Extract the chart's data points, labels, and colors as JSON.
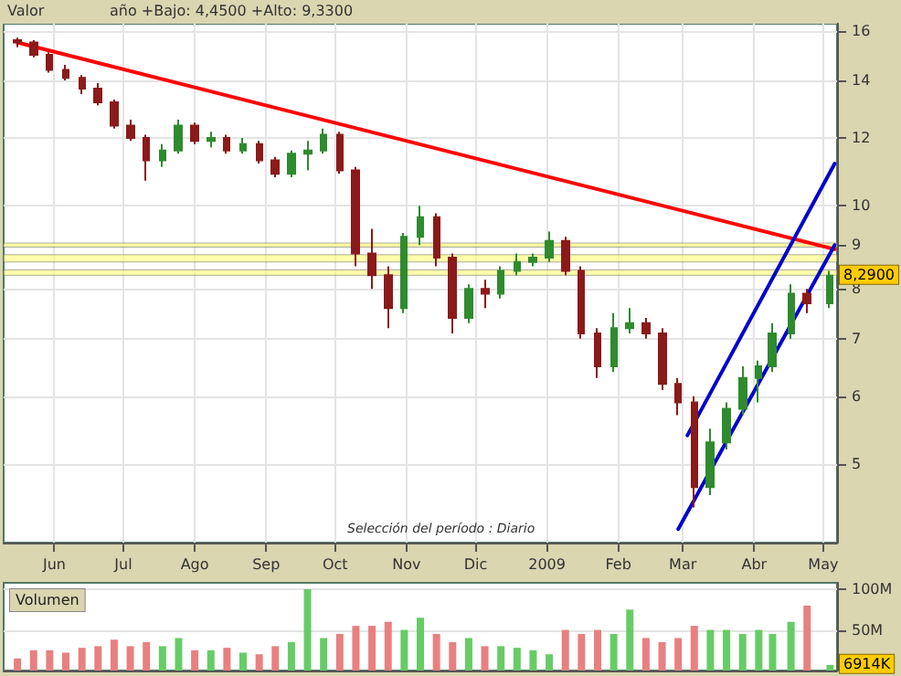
{
  "chart_data": [
    {
      "type": "candlestick",
      "title": "Valor",
      "subtitle": "año +Bajo: 4,4500 +Alto: 9,3300",
      "x": [
        "2008-05-16",
        "2008-05-23",
        "2008-05-30",
        "2008-06-06",
        "2008-06-13",
        "2008-06-20",
        "2008-06-27",
        "2008-07-04",
        "2008-07-11",
        "2008-07-18",
        "2008-07-25",
        "2008-08-01",
        "2008-08-08",
        "2008-08-15",
        "2008-08-22",
        "2008-08-29",
        "2008-09-05",
        "2008-09-12",
        "2008-09-19",
        "2008-09-26",
        "2008-10-03",
        "2008-10-10",
        "2008-10-17",
        "2008-10-24",
        "2008-10-31",
        "2008-11-07",
        "2008-11-14",
        "2008-11-21",
        "2008-11-28",
        "2008-12-05",
        "2008-12-12",
        "2008-12-19",
        "2008-12-26",
        "2009-01-02",
        "2009-01-09",
        "2009-01-16",
        "2009-01-23",
        "2009-01-30",
        "2009-02-06",
        "2009-02-13",
        "2009-02-20",
        "2009-02-27",
        "2009-03-06",
        "2009-03-13",
        "2009-03-20",
        "2009-03-27",
        "2009-04-03",
        "2009-04-09",
        "2009-04-17",
        "2009-04-24",
        "2009-05-04"
      ],
      "ohlc": [
        [
          15.6,
          15.7,
          15.3,
          15.5
        ],
        [
          15.5,
          15.6,
          14.9,
          15.0
        ],
        [
          15.0,
          15.1,
          14.3,
          14.4
        ],
        [
          14.4,
          14.6,
          14.0,
          14.1
        ],
        [
          14.1,
          14.2,
          13.5,
          13.7
        ],
        [
          13.7,
          13.9,
          13.1,
          13.2
        ],
        [
          13.2,
          13.3,
          12.3,
          12.4
        ],
        [
          12.4,
          12.6,
          11.9,
          12.0
        ],
        [
          12.0,
          12.1,
          10.7,
          11.3
        ],
        [
          11.3,
          11.8,
          11.1,
          11.6
        ],
        [
          11.6,
          12.6,
          11.5,
          12.4
        ],
        [
          12.4,
          12.5,
          11.8,
          11.9
        ],
        [
          11.9,
          12.2,
          11.7,
          12.0
        ],
        [
          12.0,
          12.1,
          11.5,
          11.6
        ],
        [
          11.6,
          12.0,
          11.5,
          11.8
        ],
        [
          11.8,
          11.9,
          11.2,
          11.3
        ],
        [
          11.3,
          11.4,
          10.8,
          10.9
        ],
        [
          10.9,
          11.6,
          10.8,
          11.5
        ],
        [
          11.5,
          11.9,
          11.0,
          11.6
        ],
        [
          11.6,
          12.3,
          11.5,
          12.1
        ],
        [
          12.1,
          12.2,
          10.9,
          11.0
        ],
        [
          11.0,
          11.1,
          8.5,
          8.8
        ],
        [
          8.8,
          9.4,
          8.0,
          8.3
        ],
        [
          8.3,
          8.5,
          7.2,
          7.6
        ],
        [
          7.6,
          9.3,
          7.5,
          9.2
        ],
        [
          9.2,
          10.0,
          9.0,
          9.7
        ],
        [
          9.7,
          9.8,
          8.5,
          8.7
        ],
        [
          8.7,
          8.8,
          7.1,
          7.4
        ],
        [
          7.4,
          8.1,
          7.3,
          8.0
        ],
        [
          8.0,
          8.2,
          7.6,
          7.9
        ],
        [
          7.9,
          8.5,
          7.8,
          8.4
        ],
        [
          8.4,
          8.8,
          8.3,
          8.6
        ],
        [
          8.6,
          8.8,
          8.5,
          8.7
        ],
        [
          8.7,
          9.33,
          8.6,
          9.1
        ],
        [
          9.1,
          9.2,
          8.3,
          8.4
        ],
        [
          8.4,
          8.5,
          7.0,
          7.1
        ],
        [
          7.1,
          7.2,
          6.3,
          6.5
        ],
        [
          6.5,
          7.5,
          6.4,
          7.2
        ],
        [
          7.2,
          7.6,
          7.1,
          7.3
        ],
        [
          7.3,
          7.4,
          7.0,
          7.1
        ],
        [
          7.1,
          7.2,
          6.1,
          6.2
        ],
        [
          6.2,
          6.3,
          5.7,
          5.9
        ],
        [
          5.9,
          6.0,
          4.45,
          4.7
        ],
        [
          4.7,
          5.5,
          4.6,
          5.3
        ],
        [
          5.3,
          5.9,
          5.2,
          5.8
        ],
        [
          5.8,
          6.5,
          5.7,
          6.3
        ],
        [
          6.3,
          6.6,
          5.9,
          6.5
        ],
        [
          6.5,
          7.3,
          6.4,
          7.1
        ],
        [
          7.1,
          8.1,
          7.0,
          7.9
        ],
        [
          7.9,
          8.0,
          7.5,
          7.7
        ],
        [
          7.7,
          8.4,
          7.6,
          8.29
        ]
      ],
      "colors": [
        "#8b1a1a",
        "#8b1a1a",
        "#8b1a1a",
        "#8b1a1a",
        "#8b1a1a",
        "#8b1a1a",
        "#8b1a1a",
        "#8b1a1a",
        "#8b1a1a",
        "#2e8b2e",
        "#2e8b2e",
        "#8b1a1a",
        "#2e8b2e",
        "#8b1a1a",
        "#2e8b2e",
        "#8b1a1a",
        "#8b1a1a",
        "#2e8b2e",
        "#2e8b2e",
        "#2e8b2e",
        "#8b1a1a",
        "#8b1a1a",
        "#8b1a1a",
        "#8b1a1a",
        "#2e8b2e",
        "#2e8b2e",
        "#8b1a1a",
        "#8b1a1a",
        "#2e8b2e",
        "#8b1a1a",
        "#2e8b2e",
        "#2e8b2e",
        "#2e8b2e",
        "#2e8b2e",
        "#8b1a1a",
        "#8b1a1a",
        "#8b1a1a",
        "#2e8b2e",
        "#2e8b2e",
        "#8b1a1a",
        "#8b1a1a",
        "#8b1a1a",
        "#8b1a1a",
        "#2e8b2e",
        "#2e8b2e",
        "#2e8b2e",
        "#2e8b2e",
        "#2e8b2e",
        "#2e8b2e",
        "#8b1a1a",
        "#2e8b2e"
      ],
      "series": [
        {
          "type": "line",
          "color": "#ff0000",
          "x": [
            "2008-05-16",
            "2009-05-06"
          ],
          "values": [
            15.5,
            8.9
          ]
        },
        {
          "type": "line",
          "color": "#0000cc",
          "x": [
            "2009-03-03",
            "2009-05-06"
          ],
          "values": [
            5.4,
            11.2
          ]
        },
        {
          "type": "line",
          "color": "#0000cc",
          "x": [
            "2009-02-27",
            "2009-05-06"
          ],
          "values": [
            4.2,
            9.0
          ]
        }
      ],
      "bands": [
        {
          "axis": "y",
          "from": 8.95,
          "to": 9.05,
          "color": "#ffff66"
        },
        {
          "axis": "y",
          "from": 8.6,
          "to": 8.77,
          "color": "#ffff66"
        },
        {
          "axis": "y",
          "from": 8.3,
          "to": 8.42,
          "color": "#ffff66"
        }
      ],
      "annotations": [
        {
          "text": "8,2900",
          "x": "2009-05-04",
          "y": 8.29
        },
        "Selección del período : Diario"
      ],
      "xlim": [
        "2008-05-10",
        "2009-05-07"
      ],
      "xticks": [
        {
          "value": "2008-06-01",
          "label": "Jun"
        },
        {
          "value": "2008-07-01",
          "label": "Jul"
        },
        {
          "value": "2008-08-01",
          "label": "Ago"
        },
        {
          "value": "2008-09-01",
          "label": "Sep"
        },
        {
          "value": "2008-10-01",
          "label": "Oct"
        },
        {
          "value": "2008-11-01",
          "label": "Nov"
        },
        {
          "value": "2008-12-01",
          "label": "Dic"
        },
        {
          "value": "2009-01-01",
          "label": "2009"
        },
        {
          "value": "2009-02-01",
          "label": "Feb"
        },
        {
          "value": "2009-03-01",
          "label": "Mar"
        },
        {
          "value": "2009-04-01",
          "label": "Abr"
        },
        {
          "value": "2009-05-01",
          "label": "May"
        }
      ],
      "log": true,
      "ylim": [
        4.05,
        16.3
      ],
      "yticks": [
        5,
        6,
        7,
        8,
        9,
        10,
        12,
        14,
        16
      ],
      "grid": true
    },
    {
      "type": "bar",
      "title": "Volumen",
      "x": [
        "2008-05-16",
        "2008-05-23",
        "2008-05-30",
        "2008-06-06",
        "2008-06-13",
        "2008-06-20",
        "2008-06-27",
        "2008-07-04",
        "2008-07-11",
        "2008-07-18",
        "2008-07-25",
        "2008-08-01",
        "2008-08-08",
        "2008-08-15",
        "2008-08-22",
        "2008-08-29",
        "2008-09-05",
        "2008-09-12",
        "2008-09-19",
        "2008-09-26",
        "2008-10-03",
        "2008-10-10",
        "2008-10-17",
        "2008-10-24",
        "2008-10-31",
        "2008-11-07",
        "2008-11-14",
        "2008-11-21",
        "2008-11-28",
        "2008-12-05",
        "2008-12-12",
        "2008-12-19",
        "2008-12-26",
        "2009-01-02",
        "2009-01-09",
        "2009-01-16",
        "2009-01-23",
        "2009-01-30",
        "2009-02-06",
        "2009-02-13",
        "2009-02-20",
        "2009-02-27",
        "2009-03-06",
        "2009-03-13",
        "2009-03-20",
        "2009-03-27",
        "2009-04-03",
        "2009-04-09",
        "2009-04-17",
        "2009-04-24",
        "2009-05-04"
      ],
      "values": [
        15,
        25,
        25,
        22,
        28,
        30,
        38,
        30,
        35,
        30,
        40,
        25,
        25,
        28,
        22,
        20,
        30,
        35,
        100,
        40,
        45,
        55,
        55,
        60,
        50,
        65,
        45,
        35,
        40,
        30,
        30,
        28,
        25,
        20,
        50,
        45,
        50,
        45,
        75,
        40,
        35,
        40,
        55,
        50,
        50,
        45,
        50,
        45,
        60,
        80,
        6.914
      ],
      "colors": [
        "#e88080",
        "#e88080",
        "#e88080",
        "#e88080",
        "#e88080",
        "#e88080",
        "#e88080",
        "#e88080",
        "#e88080",
        "#66cc66",
        "#66cc66",
        "#e88080",
        "#66cc66",
        "#e88080",
        "#66cc66",
        "#e88080",
        "#e88080",
        "#66cc66",
        "#66cc66",
        "#66cc66",
        "#e88080",
        "#e88080",
        "#e88080",
        "#e88080",
        "#66cc66",
        "#66cc66",
        "#e88080",
        "#e88080",
        "#66cc66",
        "#e88080",
        "#66cc66",
        "#66cc66",
        "#66cc66",
        "#66cc66",
        "#e88080",
        "#e88080",
        "#e88080",
        "#66cc66",
        "#66cc66",
        "#e88080",
        "#e88080",
        "#e88080",
        "#e88080",
        "#66cc66",
        "#66cc66",
        "#66cc66",
        "#66cc66",
        "#66cc66",
        "#66cc66",
        "#e88080",
        "#66cc66"
      ],
      "annotations": [
        {
          "text": "6914K",
          "x": "2009-05-04",
          "y": 6.914
        }
      ],
      "xlim": [
        "2008-05-10",
        "2009-05-07"
      ],
      "ylim": [
        0,
        108
      ],
      "yticks": [
        {
          "value": 50,
          "label": "50M"
        },
        {
          "value": 100,
          "label": "100M"
        }
      ],
      "tick_labels": "y",
      "grid": true
    }
  ]
}
